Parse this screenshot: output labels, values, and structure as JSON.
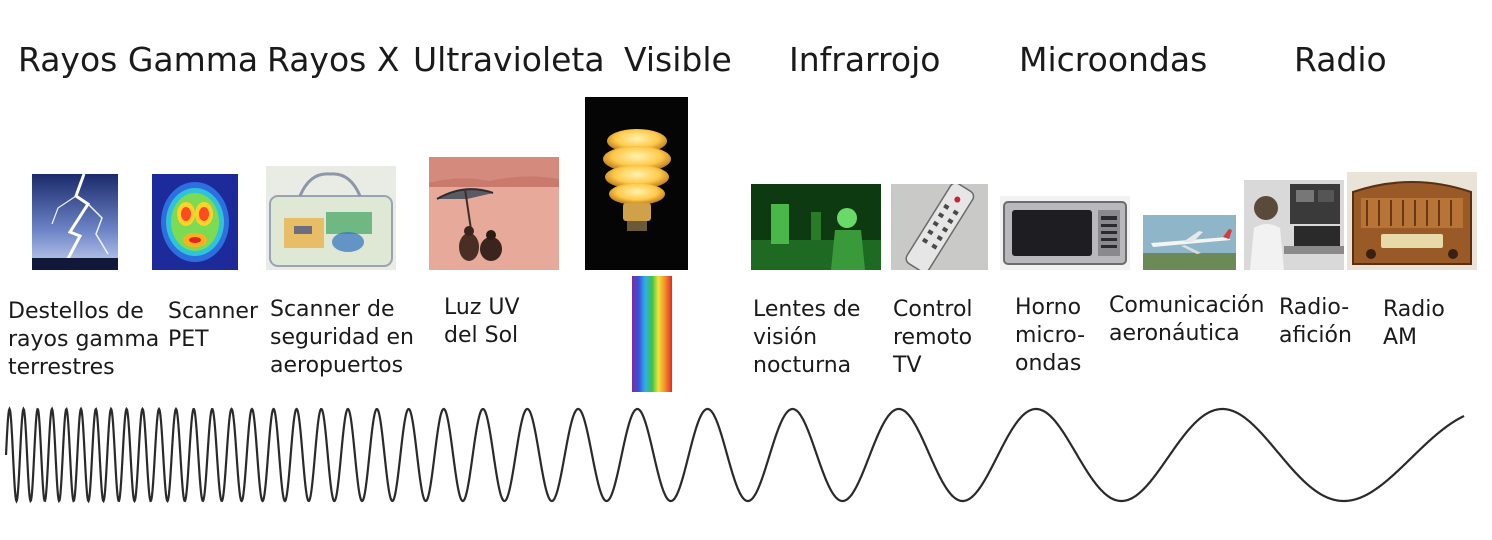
{
  "bands": [
    {
      "title": "Rayos Gamma"
    },
    {
      "title": "Rayos X"
    },
    {
      "title": "Ultravioleta"
    },
    {
      "title": "Visible"
    },
    {
      "title": "Infrarrojo"
    },
    {
      "title": "Microondas"
    },
    {
      "title": "Radio"
    }
  ],
  "examples": [
    {
      "icon": "lightning-photo",
      "lines": [
        "Destellos de",
        "rayos gamma",
        "terrestres"
      ]
    },
    {
      "icon": "pet-brain-scan-photo",
      "lines": [
        "Scanner",
        "PET"
      ]
    },
    {
      "icon": "xray-bag-photo",
      "lines": [
        "Scanner de",
        "seguridad en",
        "aeropuertos"
      ]
    },
    {
      "icon": "beach-umbrella-photo",
      "lines": [
        "Luz UV",
        "del Sol"
      ]
    },
    {
      "icon": "light-bulb-photo",
      "lines": []
    },
    {
      "icon": "night-vision-photo",
      "lines": [
        "Lentes de",
        "visión",
        "nocturna"
      ]
    },
    {
      "icon": "tv-remote-photo",
      "lines": [
        "Control",
        "remoto",
        "TV"
      ]
    },
    {
      "icon": "microwave-oven-photo",
      "lines": [
        "Horno",
        "micro-",
        "ondas"
      ]
    },
    {
      "icon": "airplane-photo",
      "lines": [
        "Comunicación",
        "aeronáutica"
      ]
    },
    {
      "icon": "ham-radio-operator-photo",
      "lines": [
        "Radio-",
        "afición"
      ]
    },
    {
      "icon": "am-radio-photo",
      "lines": [
        "Radio",
        "AM"
      ]
    }
  ],
  "colors": {
    "text": "#1a1a1a",
    "wave": "#2a2a2a"
  }
}
